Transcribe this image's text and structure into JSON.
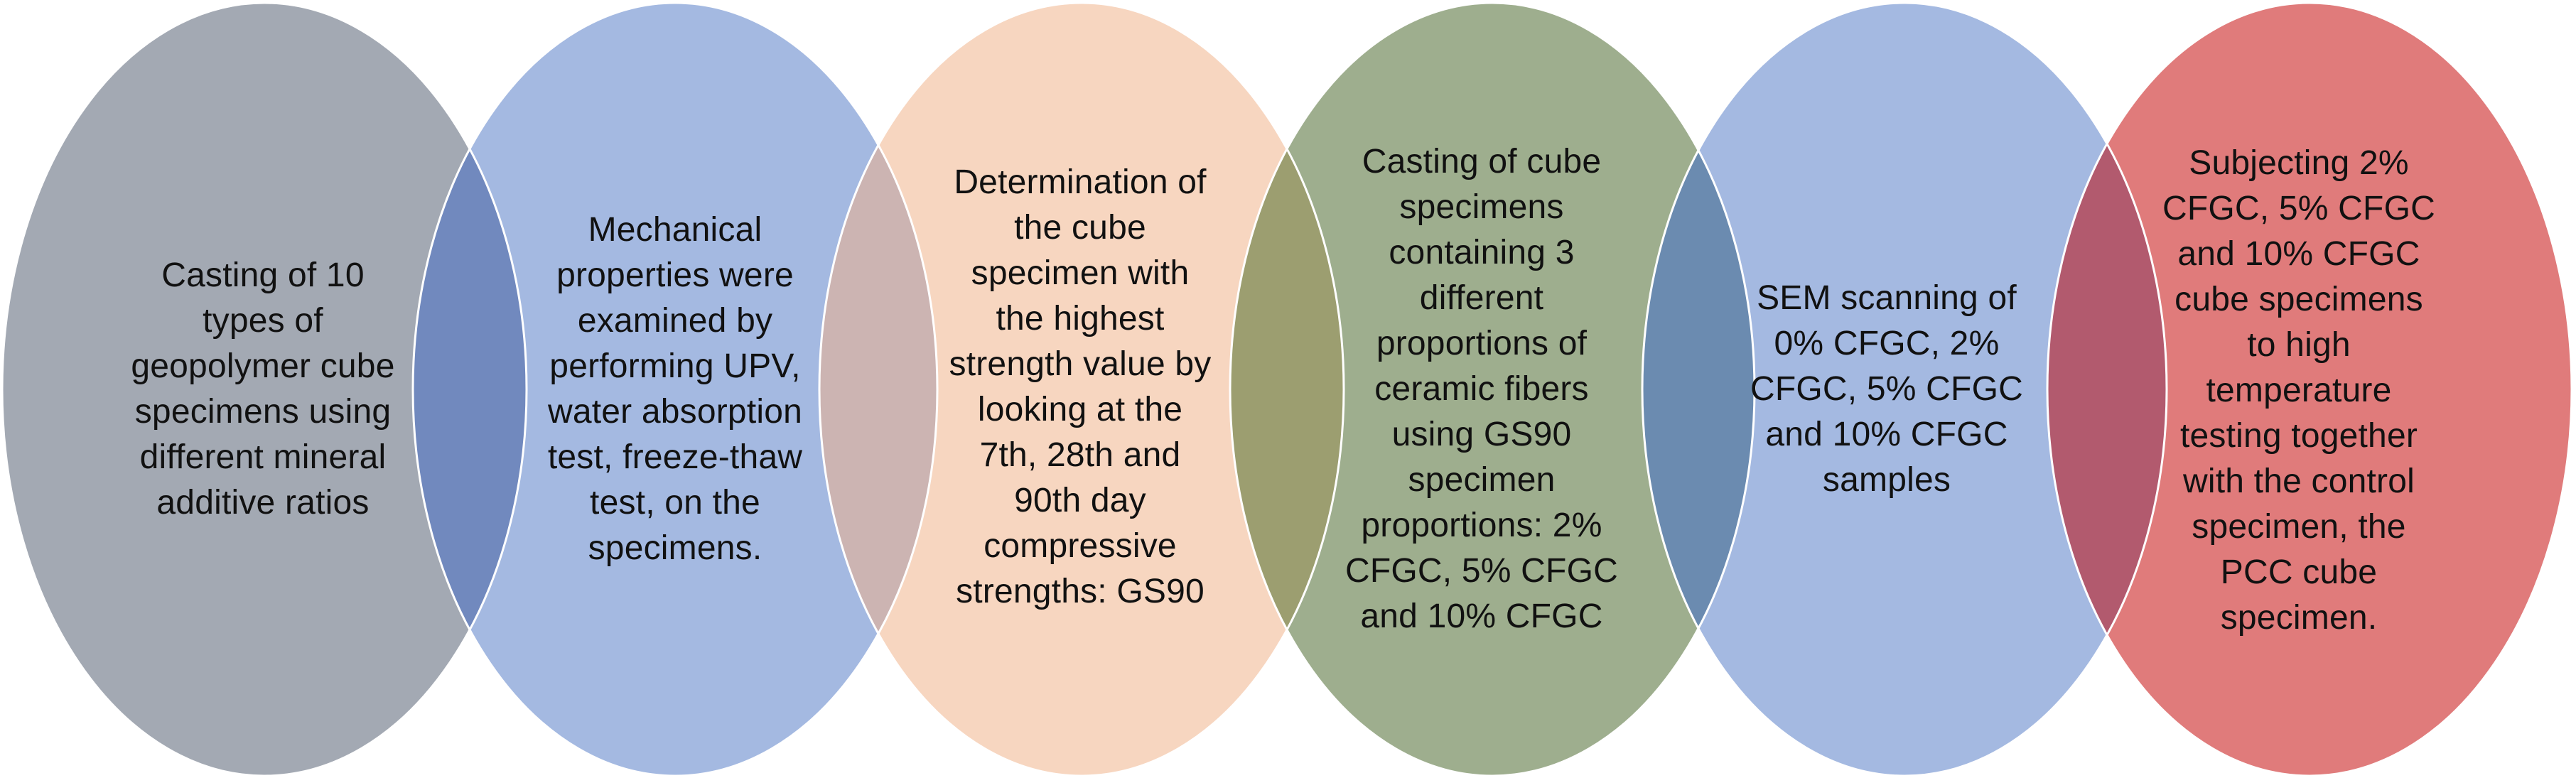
{
  "steps": [
    {
      "text": "Casting of 10 types of geopolymer cube specimens using different mineral additive ratios",
      "lines": [
        "Casting of 10",
        "types of",
        "geopolymer cube",
        "specimens using",
        "different mineral",
        "additive ratios"
      ],
      "color": "#a3a9b3"
    },
    {
      "text": "Mechanical properties were examined by performing UPV, water absorption test, freeze-thaw test, on the specimens.",
      "lines": [
        "Mechanical",
        "properties were",
        "examined by",
        "performing UPV,",
        "water absorption",
        "test, freeze-thaw",
        "test, on the",
        "specimens."
      ],
      "color": "#a4b9e1"
    },
    {
      "text": "Determination of the cube specimen with the highest strength value by looking at the 7th, 28th and 90th day compressive strengths: GS90",
      "lines": [
        "Determination of",
        "the cube",
        "specimen with",
        "the highest",
        "strength value by",
        "looking at the",
        "7th, 28th and",
        "90th day",
        "compressive",
        "strengths: GS90"
      ],
      "color": "#f7d6c0"
    },
    {
      "text": "Casting of cube specimens containing 3 different proportions of ceramic fibers using GS90 specimen proportions: 2% CFGC, 5% CFGC and 10% CFGC",
      "lines": [
        "Casting of cube",
        "specimens",
        "containing 3",
        "different",
        "proportions of",
        "ceramic fibers",
        "using GS90",
        "specimen",
        "proportions: 2%",
        "CFGC, 5% CFGC",
        "and 10% CFGC"
      ],
      "color": "#9eae8e"
    },
    {
      "text": "SEM scanning of 0% CFGC, 2% CFGC, 5% CFGC and 10% CFGC samples",
      "lines": [
        "SEM scanning of",
        "0% CFGC, 2%",
        "CFGC, 5% CFGC",
        "and 10% CFGC",
        "samples"
      ],
      "color": "#a4b9e1"
    },
    {
      "text": "Subjecting 2% CFGC, 5% CFGC and 10% CFGC cube specimens to high temperature testing together with the control specimen, the PCC cube specimen.",
      "lines": [
        "Subjecting 2%",
        "CFGC, 5% CFGC",
        "and 10% CFGC",
        "cube specimens",
        "to high",
        "temperature",
        "testing together",
        "with the control",
        "specimen, the",
        "PCC cube",
        "specimen."
      ],
      "color": "#e07b7b"
    }
  ],
  "overlap_colors": [
    "#7189be",
    "#ccb4b2",
    "#9c9e70",
    "#6b8bb0",
    "#b25a6e"
  ],
  "outline_color": "#ffffff"
}
